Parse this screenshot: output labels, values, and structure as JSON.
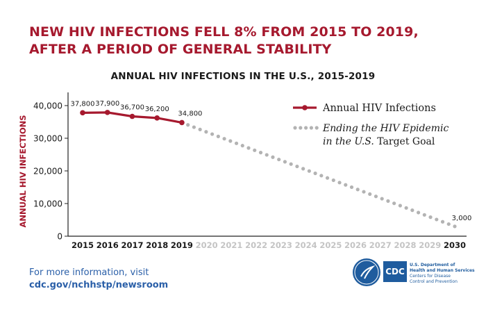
{
  "headline": {
    "line1": "NEW HIV INFECTIONS FELL 8% FROM 2015 TO 2019,",
    "line2": "AFTER A PERIOD OF GENERAL STABILITY"
  },
  "footer": {
    "line1": "For more information, visit",
    "url": "cdc.gov/nchhstp/newsroom"
  },
  "logo": {
    "cdc": "CDC",
    "dept_line1": "U.S. Department of",
    "dept_line2": "Health and Human Services",
    "center_line1": "Centers for Disease",
    "center_line2": "Control and Prevention"
  },
  "colors": {
    "actual": "#a6192e",
    "goal": "#b3b3b3",
    "headline": "#a6192e",
    "link": "#2a5fa8"
  },
  "chart_data": {
    "type": "line",
    "title": "ANNUAL HIV INFECTIONS IN THE U.S., 2015-2019",
    "ylabel": "ANNUAL HIV INFECTIONS",
    "xlabel": "",
    "ylim": [
      0,
      40000
    ],
    "yticks": [
      0,
      10000,
      20000,
      30000,
      40000
    ],
    "ytick_labels": [
      "0",
      "10,000",
      "20,000",
      "30,000",
      "40,000"
    ],
    "x": [
      "2015",
      "2016",
      "2017",
      "2018",
      "2019",
      "2020",
      "2021",
      "2022",
      "2023",
      "2024",
      "2025",
      "2026",
      "2027",
      "2028",
      "2029",
      "2030"
    ],
    "legend_position": "top-right",
    "series": [
      {
        "name": "Annual HIV Infections",
        "style": "solid",
        "x": [
          "2015",
          "2016",
          "2017",
          "2018",
          "2019"
        ],
        "values": [
          37800,
          37900,
          36700,
          36200,
          34800
        ],
        "labels": [
          "37,800",
          "37,900",
          "36,700",
          "36,200",
          "34,800"
        ]
      },
      {
        "name_part1": "Ending the HIV Epidemic",
        "name_part2": "in the U.S.",
        "name_part3": " Target Goal",
        "style": "dotted",
        "x": [
          "2019",
          "2030"
        ],
        "values": [
          34800,
          3000
        ],
        "labels": [
          "",
          "3,000"
        ]
      }
    ]
  }
}
